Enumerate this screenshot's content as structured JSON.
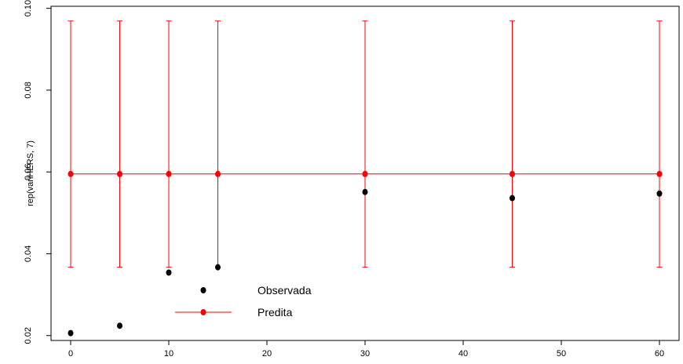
{
  "chart_data": {
    "type": "scatter",
    "title": "",
    "xlabel": "",
    "ylabel": "rep(variHERS, 7)",
    "xlim": [
      -2,
      62
    ],
    "ylim": [
      0.0188,
      0.1005
    ],
    "x_ticks": [
      0,
      10,
      20,
      30,
      40,
      50,
      60
    ],
    "y_ticks": [
      0.02,
      0.04,
      0.06,
      0.08,
      0.1
    ],
    "y_tick_labels": [
      "0.02",
      "0.04",
      "0.06",
      "0.08",
      "0.10"
    ],
    "grid": false,
    "legend_position": "bottom-left",
    "series": [
      {
        "name": "Observada",
        "kind": "points",
        "color": "#000000",
        "x": [
          0,
          5,
          10,
          15,
          30,
          45,
          60
        ],
        "y": [
          0.0206,
          0.0224,
          0.0354,
          0.0367,
          0.0551,
          0.0536,
          0.0547
        ]
      },
      {
        "name": "Predita",
        "kind": "line-with-errorbars",
        "color": "#ff0000",
        "x": [
          0,
          5,
          10,
          15,
          30,
          45,
          60
        ],
        "y": [
          0.0595,
          0.0595,
          0.0595,
          0.0595,
          0.0595,
          0.0595,
          0.0595
        ],
        "lower": [
          0.0367,
          0.0367,
          0.0367,
          0.0367,
          0.0367,
          0.0367,
          0.0367
        ],
        "upper": [
          0.0969,
          0.0969,
          0.0969,
          0.0969,
          0.0969,
          0.0969,
          0.0969
        ]
      }
    ]
  }
}
